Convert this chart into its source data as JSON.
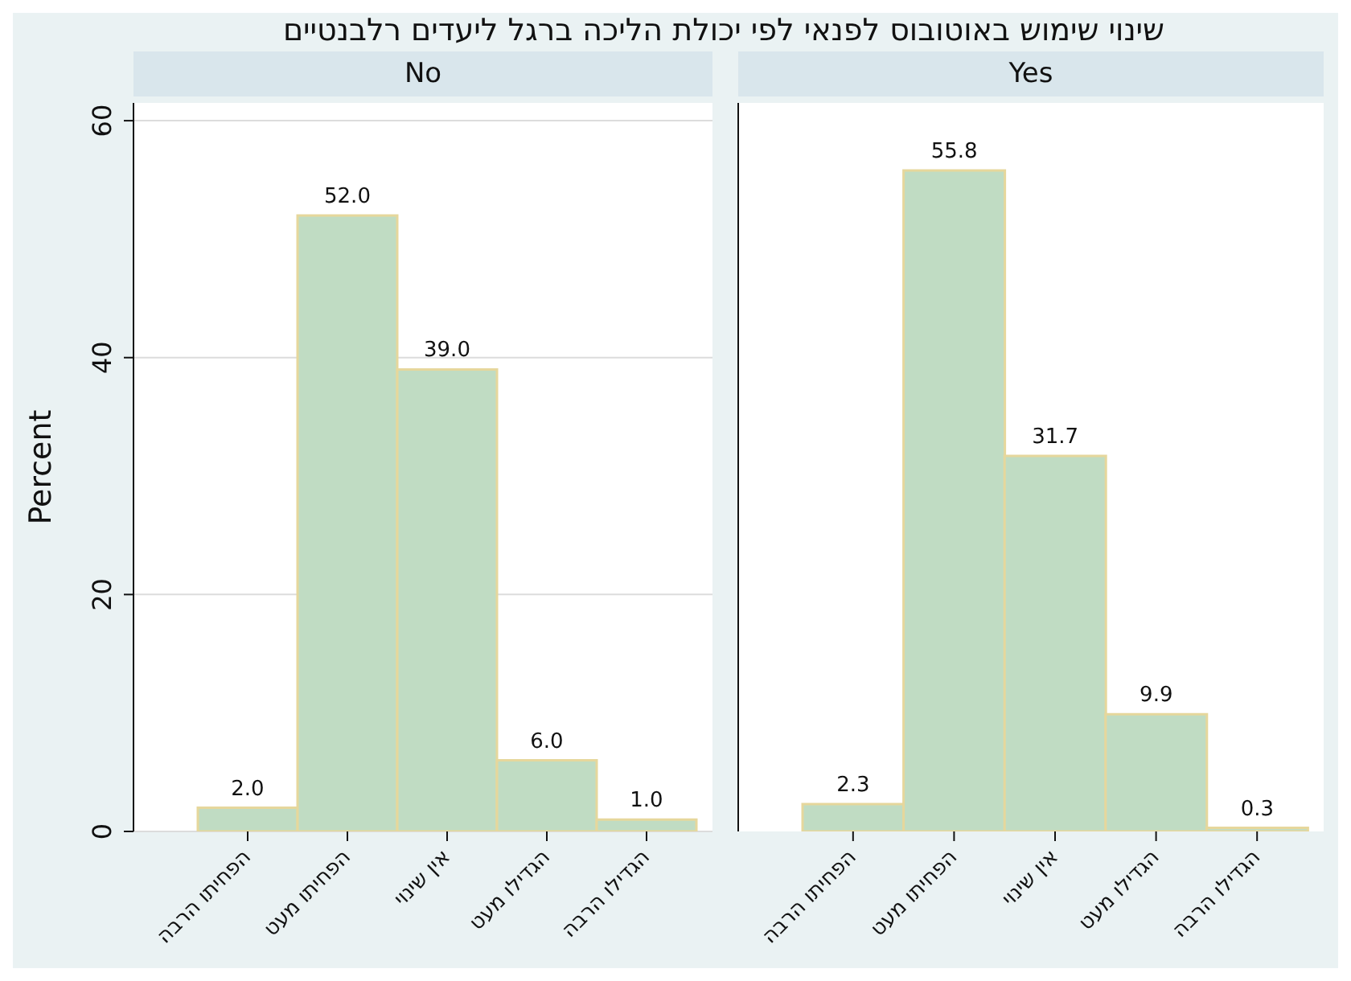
{
  "chart_data": [
    {
      "type": "bar",
      "title": "שינוי שימוש באוטובוס לפנאי לפי יכולת הליכה ברגל ליעדים רלבנטיים",
      "subtitle": "No",
      "ylabel": "Percent",
      "categories": [
        "הפחיתו הרבה",
        "הפחיתו מעט",
        "אין שינוי",
        "הגדילו מעט",
        "הגדילו הרבה"
      ],
      "values": [
        2.0,
        52.0,
        39.0,
        6.0,
        1.0
      ],
      "value_labels": [
        "2.0",
        "52.0",
        "39.0",
        "6.0",
        "1.0"
      ],
      "color": "#c0dcc3",
      "ylim": [
        0,
        61.5
      ],
      "yticks": [
        0,
        20,
        40,
        60
      ],
      "grid": "y"
    },
    {
      "type": "bar",
      "subtitle": "Yes",
      "categories": [
        "הפחיתו הרבה",
        "הפחיתו מעט",
        "אין שינוי",
        "הגדילו מעט",
        "הגדילו הרבה"
      ],
      "values": [
        2.3,
        55.8,
        31.7,
        9.9,
        0.3
      ],
      "value_labels": [
        "2.3",
        "55.8",
        "31.7",
        "9.9",
        "0.3"
      ],
      "color": "#c0dcc3",
      "ylim": [
        0,
        61.5
      ],
      "yticks": [
        0,
        20,
        40,
        60
      ],
      "grid": "y",
      "tick_labels": "x"
    }
  ]
}
